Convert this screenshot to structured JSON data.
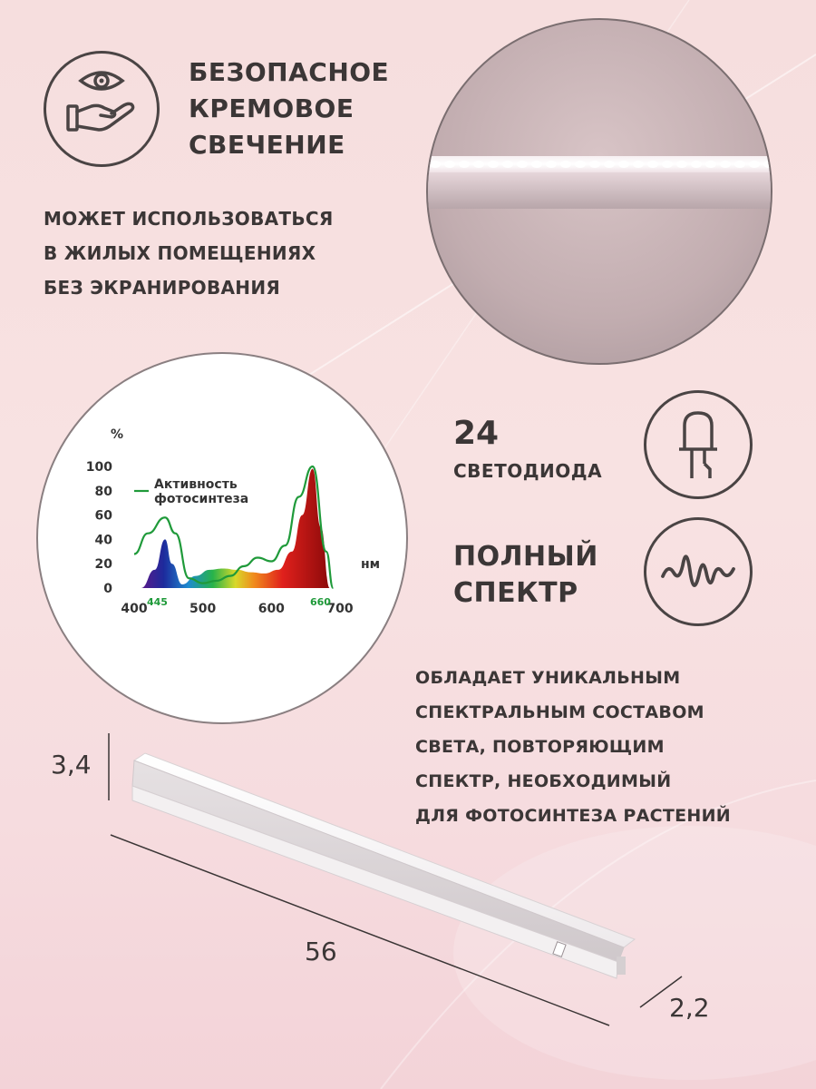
{
  "heading_safe": {
    "lines": [
      "БЕЗОПАСНОЕ",
      "КРЕМОВОЕ",
      "СВЕЧЕНИЕ"
    ]
  },
  "subtext_residential": {
    "lines": [
      "МОЖЕТ ИСПОЛЬЗОВАТЬСЯ",
      "В ЖИЛЫХ ПОМЕЩЕНИЯХ",
      "БЕЗ ЭКРАНИРОВАНИЯ"
    ]
  },
  "led_count": {
    "number": "24",
    "label": "СВЕТОДИОДА"
  },
  "full_spectrum": {
    "lines": [
      "ПОЛНЫЙ",
      "СПЕКТР"
    ]
  },
  "description": {
    "lines": [
      "ОБЛАДАЕТ УНИКАЛЬНЫМ",
      "СПЕКТРАЛЬНЫМ СОСТАВОМ",
      "СВЕТА, ПОВТОРЯЮЩИМ",
      "СПЕКТР, НЕОБХОДИМЫЙ",
      "ДЛЯ ФОТОСИНТЕЗА РАСТЕНИЙ"
    ]
  },
  "dimensions": {
    "height": "3,4",
    "length": "56",
    "depth": "2,2"
  },
  "icons": {
    "safe": "eye-hand-icon",
    "led": "led-diode-icon",
    "spectrum": "waveform-icon"
  },
  "colors": {
    "dark": "#4a4444",
    "accent_green": "#1f9a3a",
    "background": "#f7e0e0"
  },
  "chart_data": {
    "type": "area",
    "ylabel": "%",
    "xlabel": "нм",
    "yticks": [
      "100",
      "80",
      "60",
      "40",
      "20",
      "0"
    ],
    "xticks": [
      "400",
      "500",
      "600",
      "700"
    ],
    "xlim": [
      400,
      700
    ],
    "ylim": [
      0,
      100
    ],
    "peak_labels": [
      "445",
      "660"
    ],
    "legend": {
      "line1": "Активность",
      "line2": "фотосинтеза"
    },
    "series": [
      {
        "name": "Активность фотосинтеза",
        "x": [
          400,
          420,
          445,
          460,
          480,
          500,
          520,
          540,
          560,
          580,
          600,
          620,
          640,
          660,
          680,
          690
        ],
        "y": [
          28,
          45,
          58,
          45,
          8,
          4,
          6,
          10,
          18,
          25,
          22,
          35,
          75,
          100,
          30,
          0
        ]
      },
      {
        "x": [
          410,
          430,
          445,
          455,
          470,
          490,
          510,
          530,
          550,
          570,
          590,
          610,
          630,
          645,
          660,
          672,
          685
        ],
        "y": [
          0,
          15,
          40,
          20,
          3,
          10,
          15,
          16,
          15,
          13,
          12,
          15,
          30,
          60,
          98,
          50,
          0
        ]
      }
    ]
  }
}
